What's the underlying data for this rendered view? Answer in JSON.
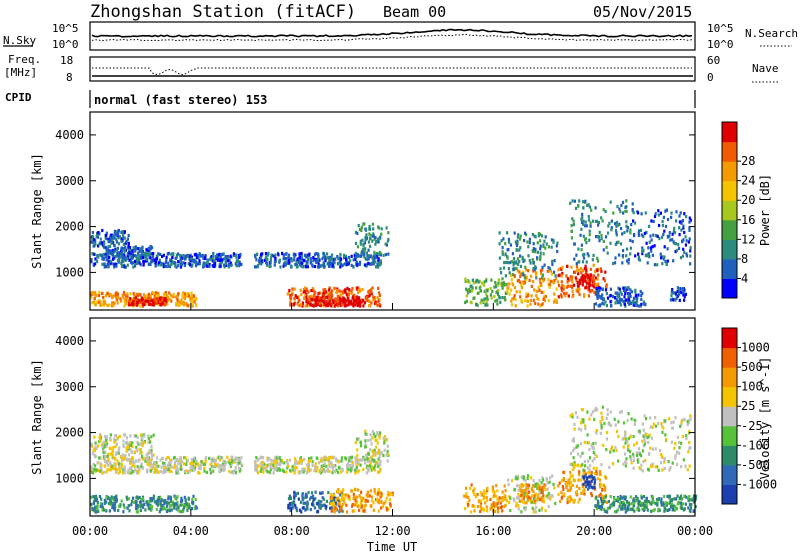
{
  "header": {
    "title": "Zhongshan Station (fitACF)",
    "beam": "Beam 00",
    "date": "05/Nov/2015"
  },
  "top_panels": {
    "noise": {
      "left_label": "N.Sky",
      "right_label": "N.Search",
      "left_ticks": [
        "10^5",
        "10^0"
      ],
      "right_ticks": [
        "10^5",
        "10^0"
      ]
    },
    "freq": {
      "left_label_1": "Freq.",
      "left_label_2": "[MHz]",
      "left_ticks": [
        "18",
        "8"
      ],
      "right_label": "Nave",
      "right_ticks": [
        "60",
        "0"
      ]
    },
    "cpid_label": "CPID",
    "mode_text": "normal (fast stereo) 153"
  },
  "chart_data": [
    {
      "type": "heatmap",
      "name": "power",
      "ylabel": "Slant Range [km]",
      "ylim": [
        180,
        4500
      ],
      "yticks": [
        "1000",
        "2000",
        "3000",
        "4000"
      ],
      "xlim": [
        0,
        24
      ],
      "xticks": [
        "00:00",
        "04:00",
        "08:00",
        "12:00",
        "16:00",
        "20:00",
        "00:00"
      ],
      "colorbar": {
        "label": "Power [dB]",
        "ticks": [
          "4",
          "8",
          "12",
          "16",
          "20",
          "24",
          "28"
        ],
        "colors": [
          "#0000ff",
          "#1f5fbe",
          "#2b8c7e",
          "#44a040",
          "#a6c81f",
          "#f5c400",
          "#f59a00",
          "#f05a00",
          "#e00000"
        ]
      },
      "regions": [
        {
          "t0": 0.0,
          "t1": 4.2,
          "r0": 300,
          "r1": 600,
          "level": 6
        },
        {
          "t0": 1.5,
          "t1": 3.0,
          "r0": 320,
          "r1": 480,
          "level": 8
        },
        {
          "t0": 0.0,
          "t1": 6.0,
          "r0": 1150,
          "r1": 1450,
          "level": 1
        },
        {
          "t0": 0.0,
          "t1": 1.5,
          "r0": 1600,
          "r1": 1950,
          "level": 1
        },
        {
          "t0": 0.5,
          "t1": 2.5,
          "r0": 1350,
          "r1": 1600,
          "level": 1
        },
        {
          "t0": 7.8,
          "t1": 11.5,
          "r0": 300,
          "r1": 700,
          "level": 7
        },
        {
          "t0": 8.5,
          "t1": 10.8,
          "r0": 300,
          "r1": 500,
          "level": 8
        },
        {
          "t0": 6.5,
          "t1": 11.5,
          "r0": 1150,
          "r1": 1450,
          "level": 1
        },
        {
          "t0": 10.5,
          "t1": 11.8,
          "r0": 1350,
          "r1": 2100,
          "level": 2
        },
        {
          "t0": 14.8,
          "t1": 16.5,
          "r0": 300,
          "r1": 900,
          "level": 3
        },
        {
          "t0": 16.5,
          "t1": 18.5,
          "r0": 300,
          "r1": 1100,
          "level": 6
        },
        {
          "t0": 16.2,
          "t1": 18.5,
          "r0": 900,
          "r1": 1900,
          "level": 2
        },
        {
          "t0": 18.5,
          "t1": 20.5,
          "r0": 500,
          "r1": 1200,
          "level": 7
        },
        {
          "t0": 19.3,
          "t1": 20.0,
          "r0": 700,
          "r1": 1000,
          "level": 8
        },
        {
          "t0": 19.0,
          "t1": 21.5,
          "r0": 1200,
          "r1": 2600,
          "level": 2
        },
        {
          "t0": 20.0,
          "t1": 22.0,
          "r0": 300,
          "r1": 700,
          "level": 1
        },
        {
          "t0": 21.5,
          "t1": 23.8,
          "r0": 1200,
          "r1": 2400,
          "level": 1
        },
        {
          "t0": 23.0,
          "t1": 23.6,
          "r0": 400,
          "r1": 700,
          "level": 1
        }
      ]
    },
    {
      "type": "heatmap",
      "name": "velocity",
      "ylabel": "Slant Range [km]",
      "ylim": [
        180,
        4500
      ],
      "yticks": [
        "1000",
        "2000",
        "3000",
        "4000"
      ],
      "xlim": [
        0,
        24
      ],
      "xticks": [
        "00:00",
        "04:00",
        "08:00",
        "12:00",
        "16:00",
        "20:00",
        "00:00"
      ],
      "xlabel": "Time UT",
      "colorbar": {
        "label": "Velocity [m s^-1]",
        "ticks": [
          "1000",
          "500",
          "100",
          "25",
          "-25",
          "-100",
          "-500",
          "-1000"
        ],
        "colors": [
          "#1c3fb0",
          "#2e6ab8",
          "#2e8b6a",
          "#55c23a",
          "#c0c0c0",
          "#f5c400",
          "#f59a00",
          "#f06000",
          "#e00000"
        ]
      },
      "regions": [
        {
          "t0": 0.0,
          "t1": 4.2,
          "r0": 300,
          "r1": 650,
          "level": 2
        },
        {
          "t0": 0.0,
          "t1": 6.0,
          "r0": 1150,
          "r1": 1500,
          "level": 4
        },
        {
          "t0": 0.0,
          "t1": 2.5,
          "r0": 1500,
          "r1": 2000,
          "level": 4
        },
        {
          "t0": 7.8,
          "t1": 10.0,
          "r0": 300,
          "r1": 750,
          "level": 1
        },
        {
          "t0": 9.5,
          "t1": 12.0,
          "r0": 300,
          "r1": 800,
          "level": 6
        },
        {
          "t0": 6.5,
          "t1": 11.5,
          "r0": 1150,
          "r1": 1500,
          "level": 4
        },
        {
          "t0": 10.5,
          "t1": 11.8,
          "r0": 1400,
          "r1": 2100,
          "level": 4
        },
        {
          "t0": 14.8,
          "t1": 16.5,
          "r0": 300,
          "r1": 900,
          "level": 6
        },
        {
          "t0": 16.5,
          "t1": 18.5,
          "r0": 300,
          "r1": 1100,
          "level": 4
        },
        {
          "t0": 17.0,
          "t1": 18.0,
          "r0": 500,
          "r1": 900,
          "level": 6
        },
        {
          "t0": 18.5,
          "t1": 20.5,
          "r0": 500,
          "r1": 1200,
          "level": 6
        },
        {
          "t0": 19.5,
          "t1": 20.0,
          "r0": 800,
          "r1": 1100,
          "level": 0
        },
        {
          "t0": 19.0,
          "t1": 21.5,
          "r0": 1200,
          "r1": 2600,
          "level": 4
        },
        {
          "t0": 20.0,
          "t1": 24.0,
          "r0": 300,
          "r1": 650,
          "level": 2
        },
        {
          "t0": 21.5,
          "t1": 23.8,
          "r0": 1200,
          "r1": 2400,
          "level": 4
        }
      ]
    }
  ]
}
